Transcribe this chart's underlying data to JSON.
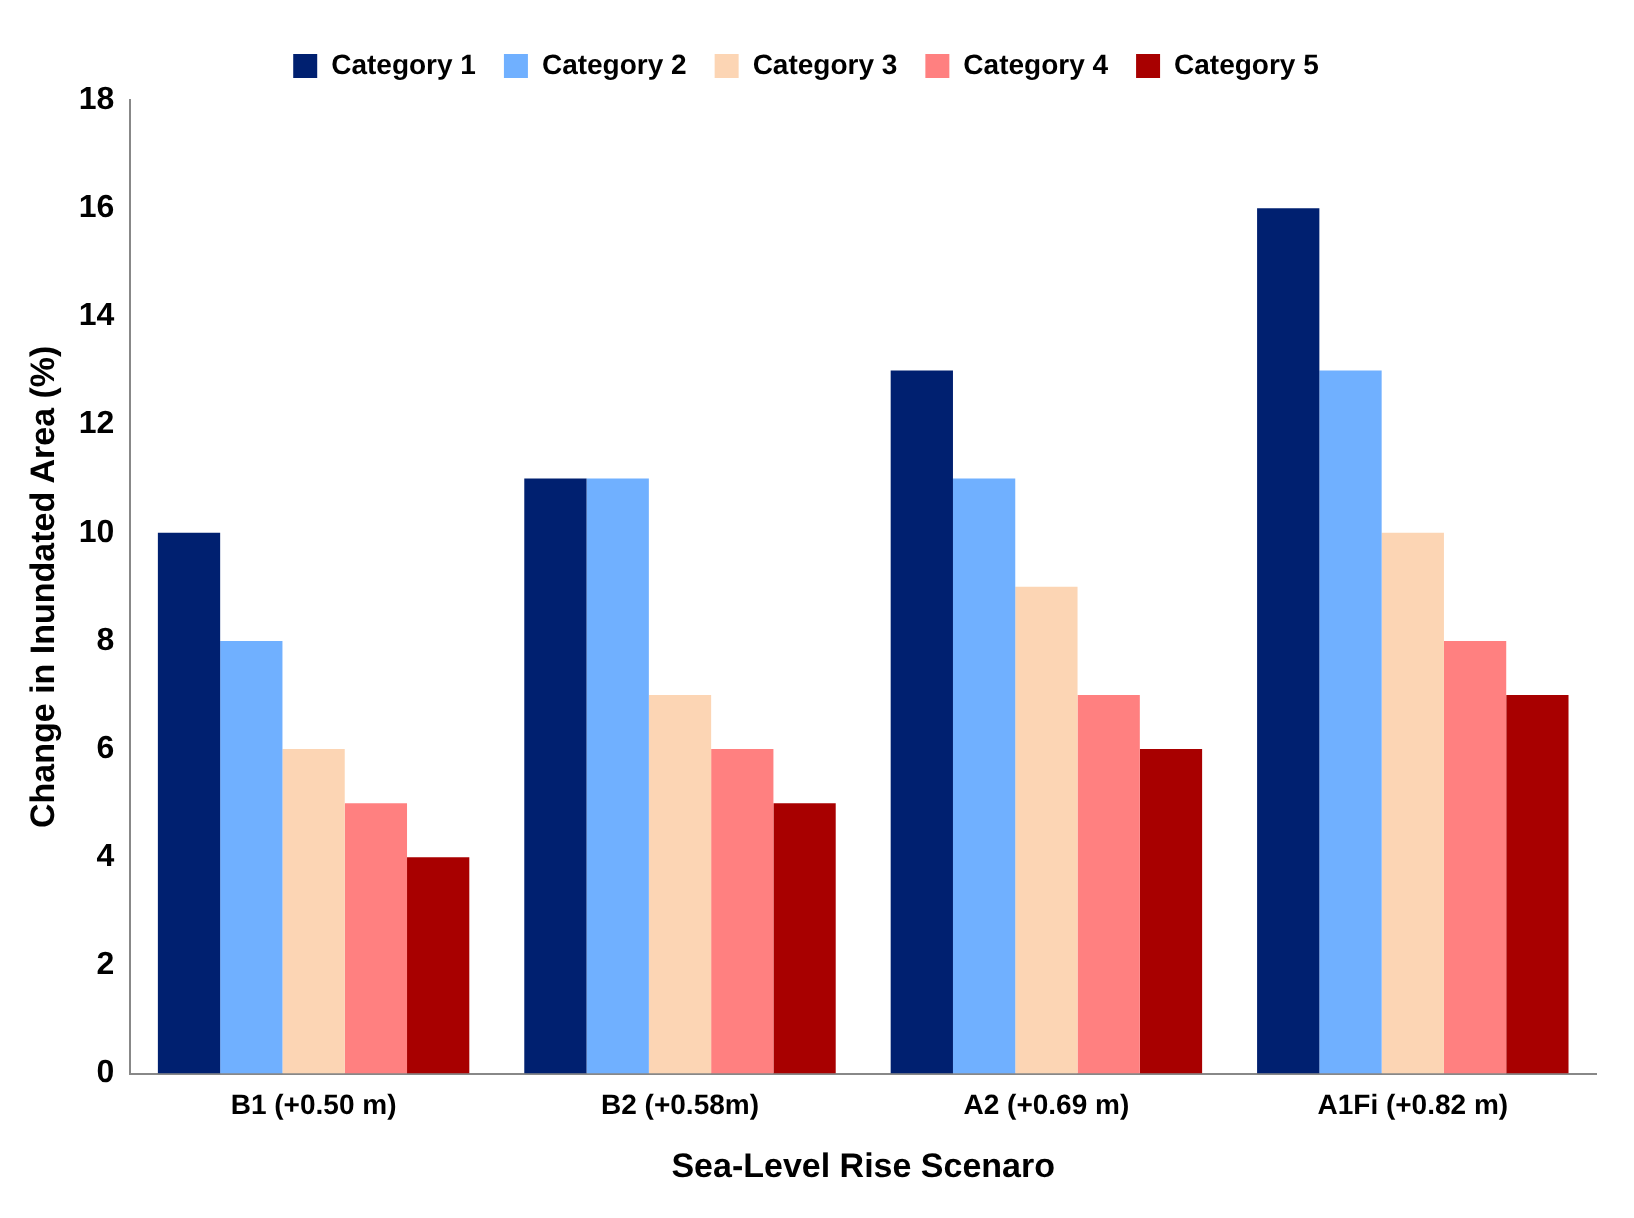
{
  "chart_data": {
    "type": "bar",
    "xlabel": "Sea-Level Rise Scenaro",
    "ylabel": "Change in Inundated Area (%)",
    "categories": [
      "B1 (+0.50 m)",
      "B2 (+0.58m)",
      "A2 (+0.69 m)",
      "A1Fi (+0.82 m)"
    ],
    "series": [
      {
        "name": "Category 1",
        "color": "#002070",
        "values": [
          10,
          11,
          13,
          16
        ]
      },
      {
        "name": "Category 2",
        "color": "#70b0ff",
        "values": [
          8,
          11,
          11,
          13
        ]
      },
      {
        "name": "Category 3",
        "color": "#fcd5b4",
        "values": [
          6,
          7,
          9,
          10
        ]
      },
      {
        "name": "Category 4",
        "color": "#ff8080",
        "values": [
          5,
          6,
          7,
          8
        ]
      },
      {
        "name": "Category 5",
        "color": "#a80000",
        "values": [
          4,
          5,
          6,
          7
        ]
      }
    ],
    "ylim": [
      0,
      18
    ],
    "yticks": [
      0,
      2,
      4,
      6,
      8,
      10,
      12,
      14,
      16,
      18
    ],
    "grid": false,
    "legend": "top"
  }
}
